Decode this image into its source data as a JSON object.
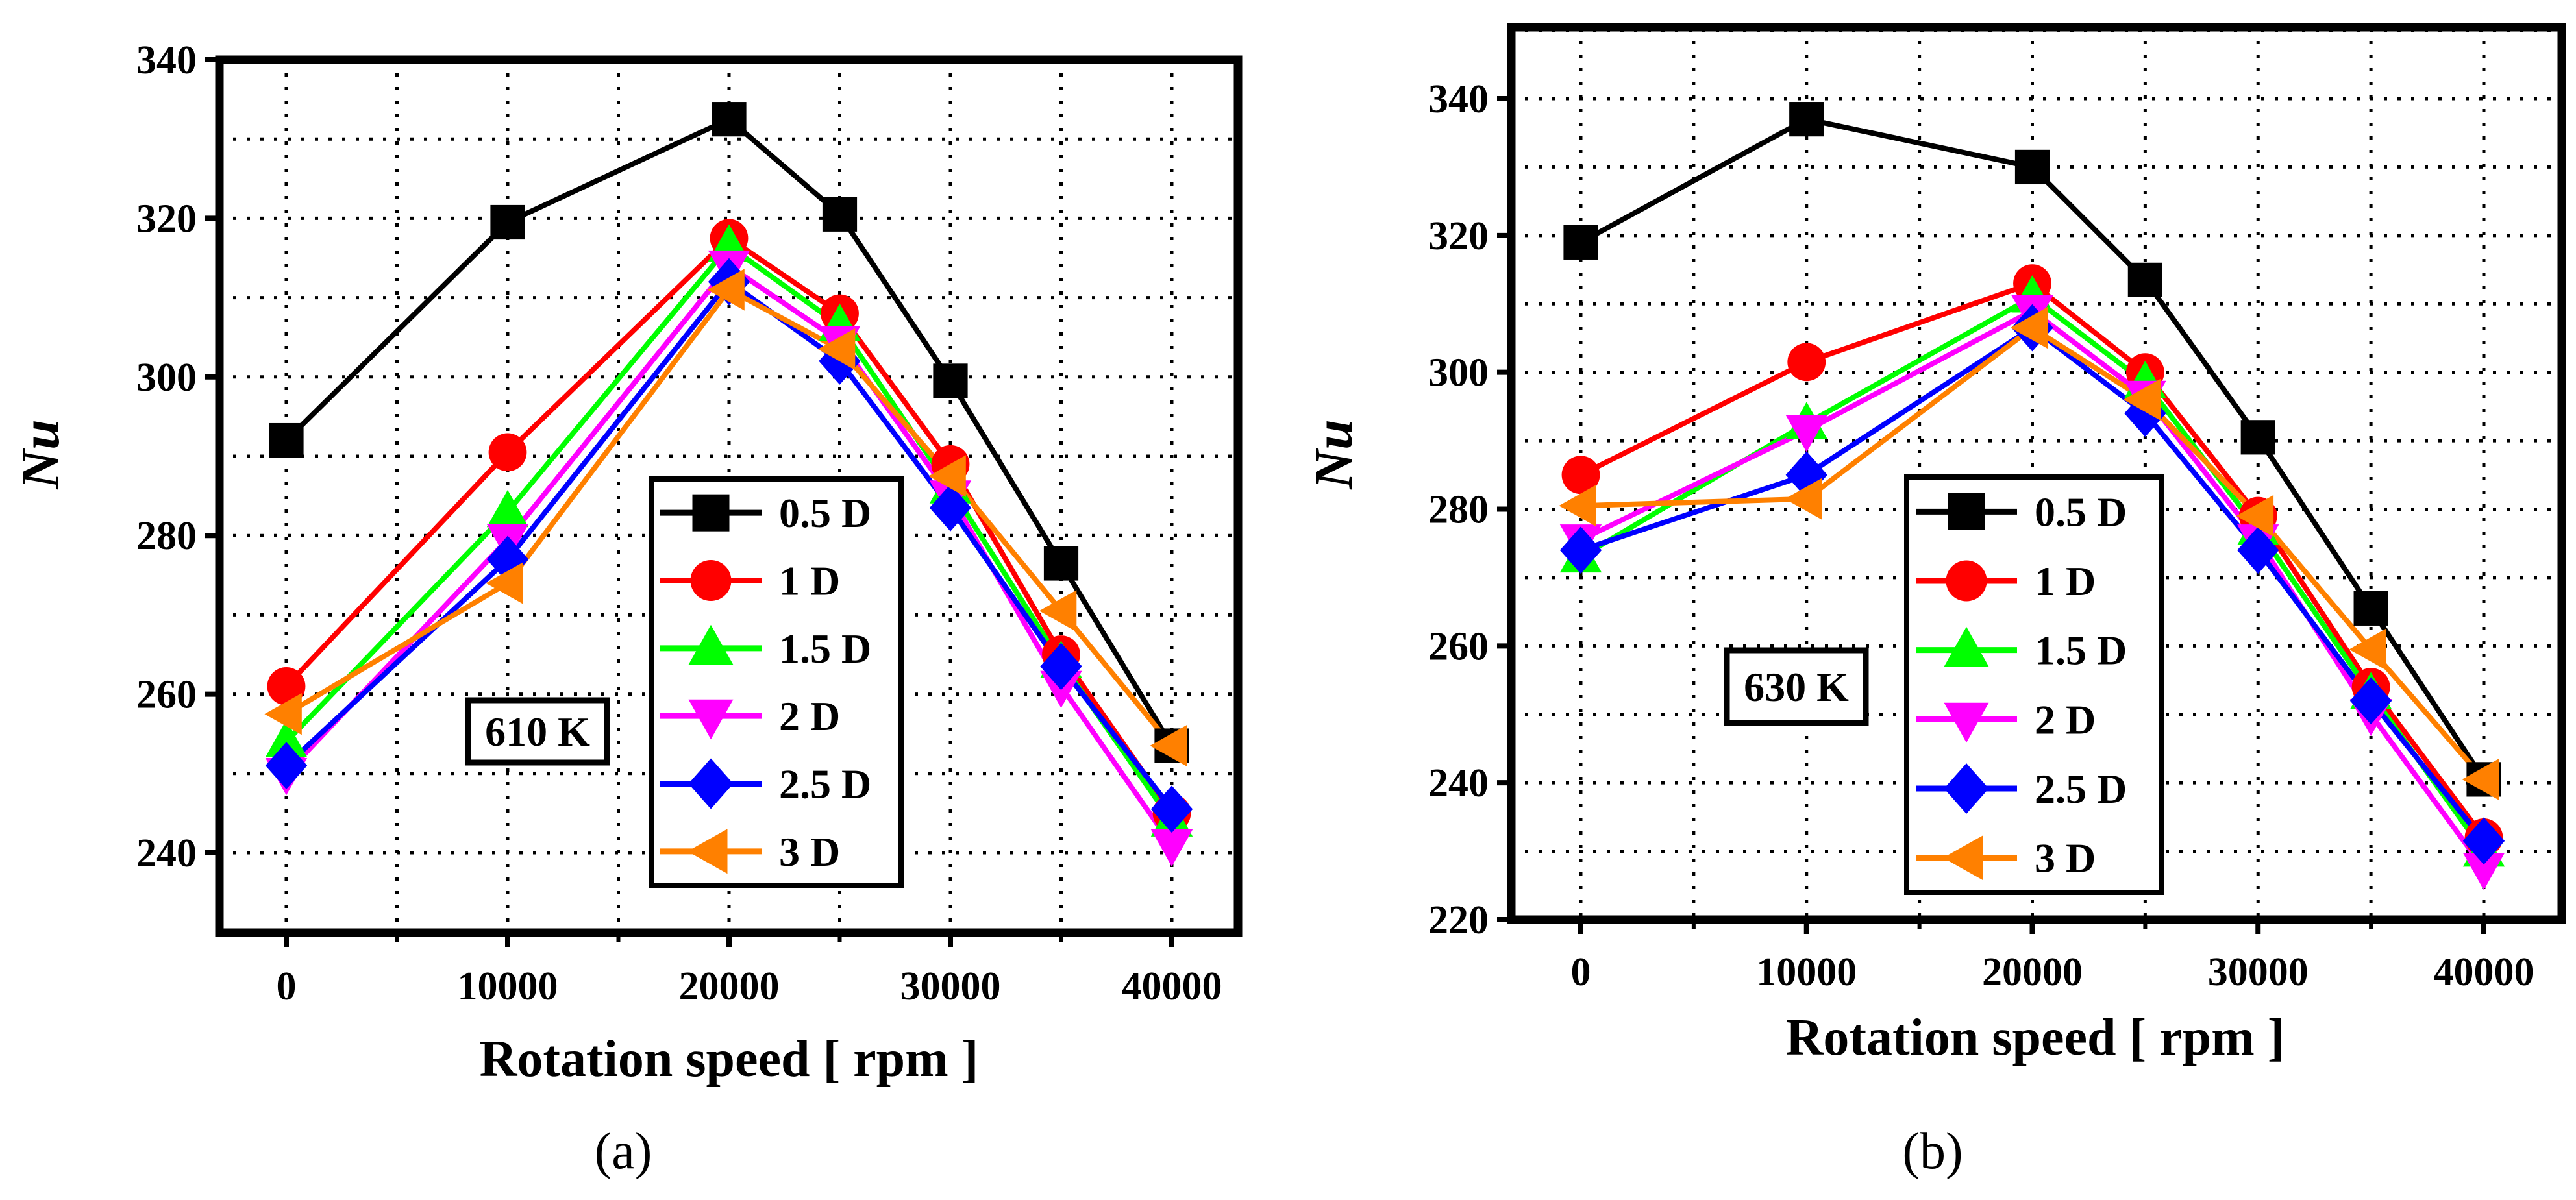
{
  "colors": {
    "series": [
      "#000000",
      "#ff0000",
      "#00ff00",
      "#ff00ff",
      "#0000ff",
      "#ff8000"
    ],
    "axis": "#000000",
    "grid": "#000000",
    "background": "#ffffff"
  },
  "chart_data": [
    {
      "type": "line",
      "panel_label": "(a)",
      "annotation": "610 K",
      "title": "",
      "xlabel": "Rotation speed [ rpm ]",
      "ylabel": "Nu",
      "xlim": [
        -3000,
        43000
      ],
      "ylim": [
        230,
        340
      ],
      "xticks": [
        0,
        10000,
        20000,
        30000,
        40000
      ],
      "xtick_labels": [
        "0",
        "10000",
        "20000",
        "30000",
        "40000"
      ],
      "yticks": [
        240,
        260,
        280,
        300,
        320,
        340
      ],
      "ytick_labels": [
        "240",
        "260",
        "280",
        "300",
        "320",
        "340"
      ],
      "grid": true,
      "legend_position": "center-right",
      "x": [
        0,
        10000,
        20000,
        25000,
        30000,
        35000,
        40000
      ],
      "series": [
        {
          "name": "0.5 D",
          "marker": "square",
          "values": [
            292,
            319.5,
            332.5,
            320.5,
            299.5,
            276.5,
            253.5
          ]
        },
        {
          "name": "1 D",
          "marker": "circle",
          "values": [
            261,
            290.5,
            317.5,
            308,
            289,
            265,
            245
          ]
        },
        {
          "name": "1.5 D",
          "marker": "triangle-up",
          "values": [
            254,
            283,
            316.5,
            306.5,
            286,
            264,
            244
          ]
        },
        {
          "name": "2 D",
          "marker": "triangle-down",
          "values": [
            250,
            279.5,
            314,
            304.5,
            285,
            261,
            241
          ]
        },
        {
          "name": "2.5 D",
          "marker": "diamond",
          "values": [
            251,
            277,
            312,
            302,
            283.5,
            263.5,
            245.5
          ]
        },
        {
          "name": "3 D",
          "marker": "triangle-left",
          "values": [
            257.5,
            274,
            311,
            303.5,
            287.5,
            270.5,
            253.5
          ]
        }
      ]
    },
    {
      "type": "line",
      "panel_label": "(b)",
      "annotation": "630 K",
      "title": "",
      "xlabel": "Rotation speed [ rpm ]",
      "ylabel": "Nu",
      "xlim": [
        -3000,
        43000
      ],
      "ylim": [
        220,
        350
      ],
      "xticks": [
        0,
        10000,
        20000,
        30000,
        40000
      ],
      "xtick_labels": [
        "0",
        "10000",
        "20000",
        "30000",
        "40000"
      ],
      "yticks": [
        220,
        240,
        260,
        280,
        300,
        320,
        340
      ],
      "ytick_labels": [
        "220",
        "240",
        "260",
        "280",
        "300",
        "320",
        "340"
      ],
      "grid": true,
      "legend_position": "center-right",
      "x": [
        0,
        10000,
        20000,
        25000,
        30000,
        35000,
        40000
      ],
      "series": [
        {
          "name": "0.5 D",
          "marker": "square",
          "values": [
            319,
            337,
            330,
            313.5,
            290.5,
            265.5,
            240.5
          ]
        },
        {
          "name": "1 D",
          "marker": "circle",
          "values": [
            285,
            301.5,
            313,
            300,
            279,
            254,
            232
          ]
        },
        {
          "name": "1.5 D",
          "marker": "triangle-up",
          "values": [
            273,
            292.5,
            311,
            298.5,
            277,
            253,
            230
          ]
        },
        {
          "name": "2 D",
          "marker": "triangle-down",
          "values": [
            275.5,
            291.5,
            309,
            296.5,
            275.5,
            250,
            227.5
          ]
        },
        {
          "name": "2.5 D",
          "marker": "diamond",
          "values": [
            274,
            285,
            306.5,
            294,
            274,
            252,
            231.5
          ]
        },
        {
          "name": "3 D",
          "marker": "triangle-left",
          "values": [
            280.5,
            281.5,
            306.5,
            296,
            279,
            259.5,
            240.5
          ]
        }
      ]
    }
  ]
}
